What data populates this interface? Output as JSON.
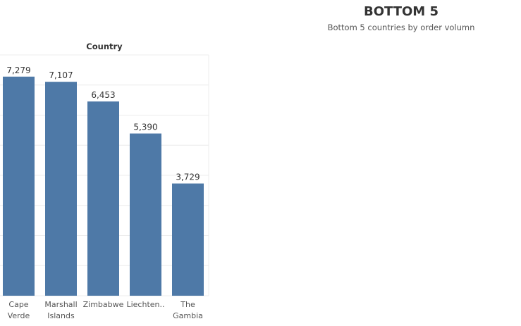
{
  "dashboard": {
    "title": "BOTTOM 5",
    "subtitle": "Bottom 5 countries by order volumn"
  },
  "chart_data": {
    "type": "bar",
    "header": "Country",
    "categories": [
      [
        "Cape",
        "Verde"
      ],
      [
        "Marshall",
        "Islands"
      ],
      [
        "Zimbabwe"
      ],
      [
        "Liechten.."
      ],
      [
        "The",
        "Gambia"
      ]
    ],
    "values": [
      7279,
      7107,
      6453,
      5390,
      3729
    ],
    "value_labels": [
      "7,279",
      "7,107",
      "6,453",
      "5,390",
      "3,729"
    ],
    "ylim": [
      0,
      8000
    ],
    "grid": true,
    "bar_color": "#4e79a7",
    "grid_color": "#ececec"
  }
}
